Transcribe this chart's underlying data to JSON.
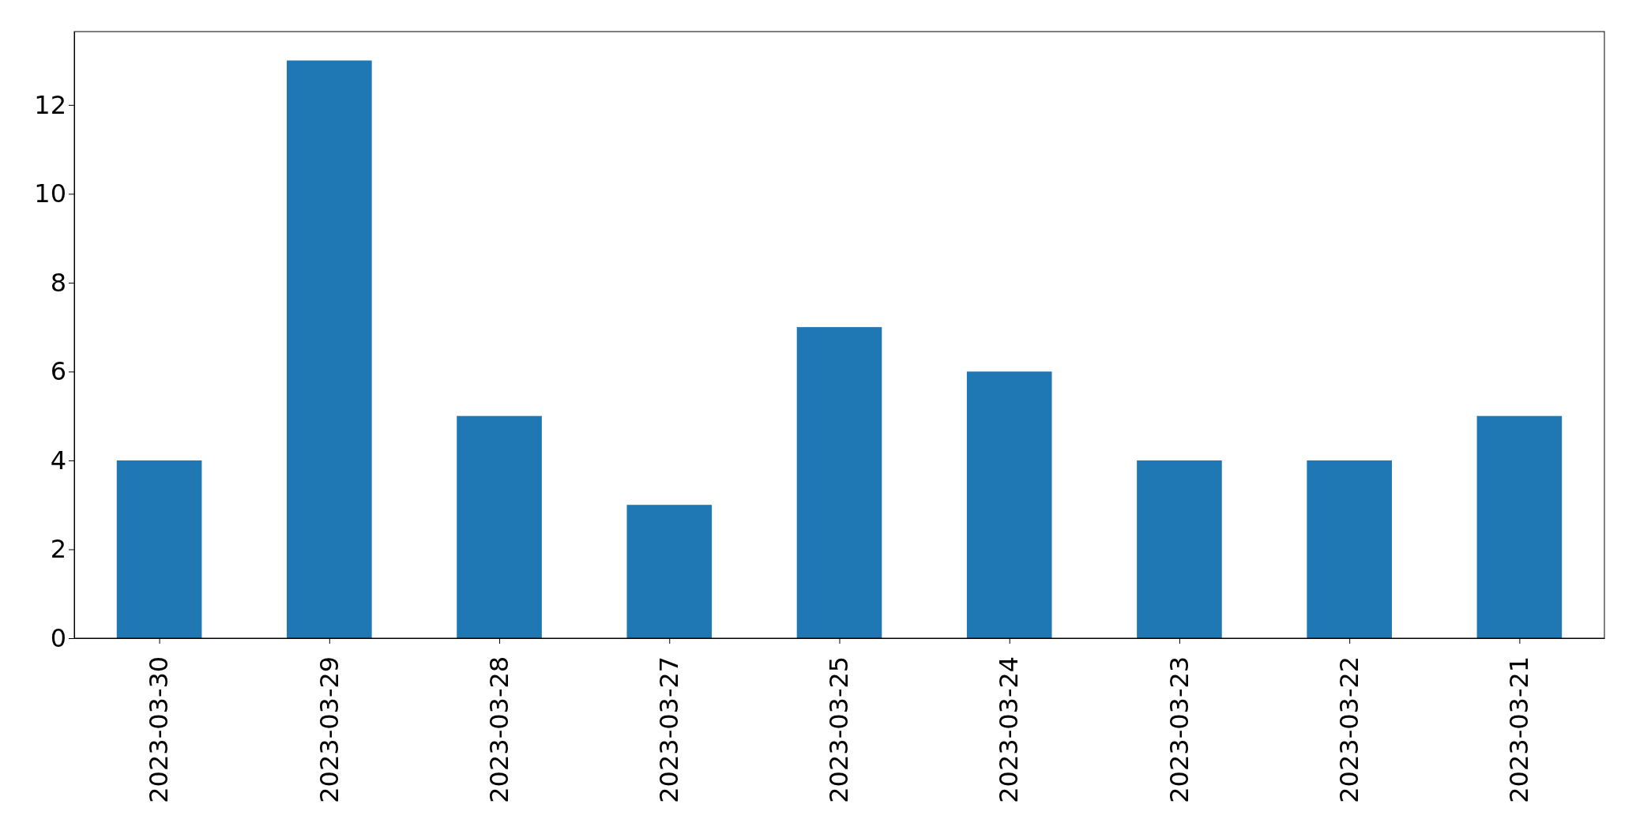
{
  "chart_data": {
    "type": "bar",
    "categories": [
      "2023-03-30",
      "2023-03-29",
      "2023-03-28",
      "2023-03-27",
      "2023-03-25",
      "2023-03-24",
      "2023-03-23",
      "2023-03-22",
      "2023-03-21"
    ],
    "values": [
      4,
      13,
      5,
      3,
      7,
      6,
      4,
      4,
      5
    ],
    "color": "#1f77b4",
    "ylim": [
      0,
      13.65
    ],
    "yticks": [
      0,
      2,
      4,
      6,
      8,
      10,
      12
    ],
    "grid": false
  }
}
